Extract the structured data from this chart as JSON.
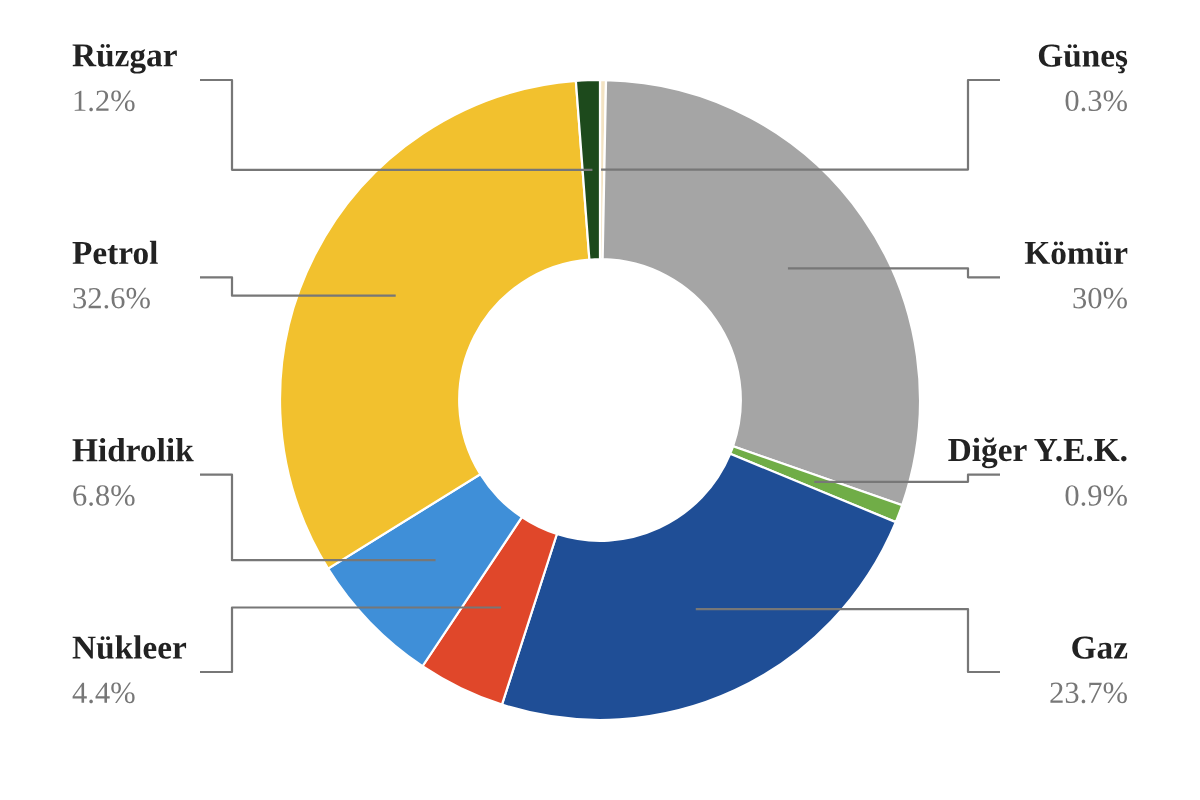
{
  "chart_data": {
    "type": "donut",
    "categories": [
      "Güneş",
      "Kömür",
      "Diğer Y.E.K.",
      "Gaz",
      "Nükleer",
      "Hidrolik",
      "Petrol",
      "Rüzgar"
    ],
    "values": [
      0.3,
      30,
      0.9,
      23.7,
      4.4,
      6.8,
      32.6,
      1.2
    ],
    "colors": [
      "#f3e3c3",
      "#a5a5a5",
      "#70ad47",
      "#1f4e96",
      "#e0472a",
      "#3f8fd8",
      "#f2c12e",
      "#1d4a1c"
    ],
    "value_labels": [
      "0.3%",
      "30%",
      "0.9%",
      "23.7%",
      "4.4%",
      "6.8%",
      "32.6%",
      "1.2%"
    ],
    "legend": false
  }
}
